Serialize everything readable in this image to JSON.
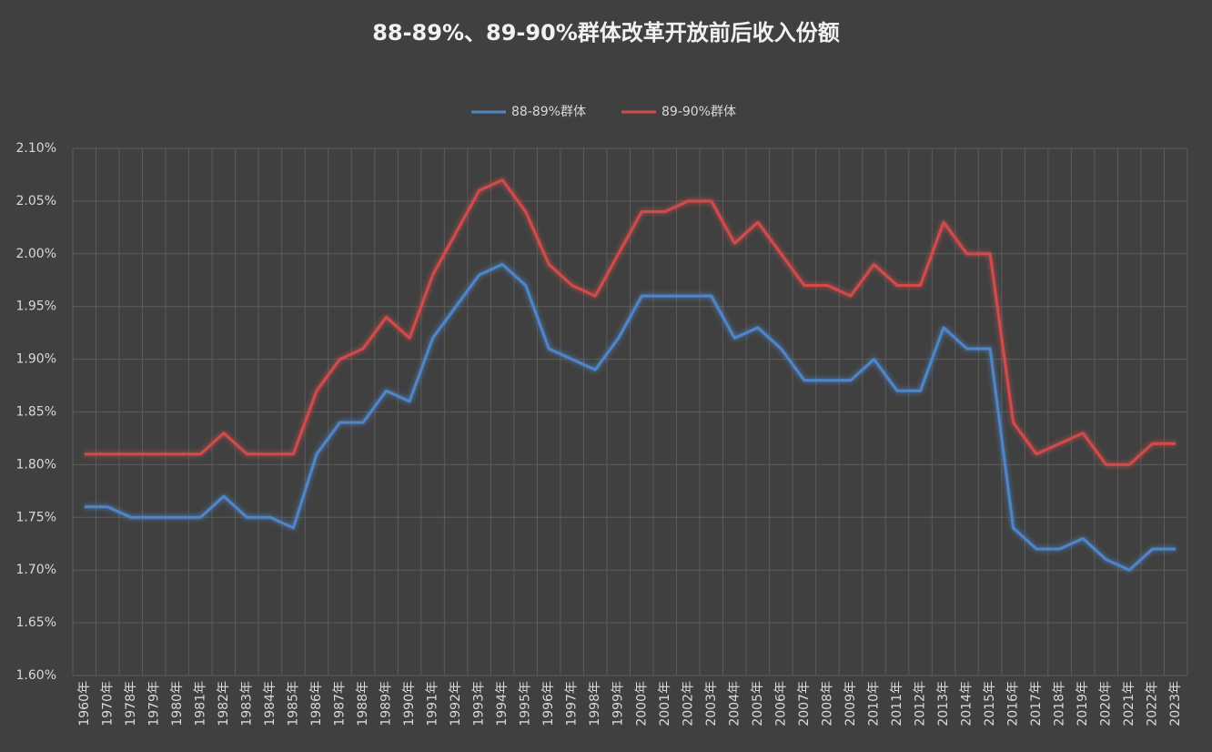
{
  "chart_data": {
    "type": "line",
    "title": "88-89%、89-90%群体改革开放前后收入份额",
    "categories": [
      "1960年",
      "1970年",
      "1978年",
      "1979年",
      "1980年",
      "1981年",
      "1982年",
      "1983年",
      "1984年",
      "1985年",
      "1986年",
      "1987年",
      "1988年",
      "1989年",
      "1990年",
      "1991年",
      "1992年",
      "1993年",
      "1994年",
      "1995年",
      "1996年",
      "1997年",
      "1998年",
      "1999年",
      "2000年",
      "2001年",
      "2002年",
      "2003年",
      "2004年",
      "2005年",
      "2006年",
      "2007年",
      "2008年",
      "2009年",
      "2010年",
      "2011年",
      "2012年",
      "2013年",
      "2014年",
      "2015年",
      "2016年",
      "2017年",
      "2018年",
      "2019年",
      "2020年",
      "2021年",
      "2022年",
      "2023年"
    ],
    "series": [
      {
        "name": "88-89%群体",
        "color": "#4f86c9",
        "values": [
          1.76,
          1.76,
          1.75,
          1.75,
          1.75,
          1.75,
          1.77,
          1.75,
          1.75,
          1.74,
          1.81,
          1.84,
          1.84,
          1.87,
          1.86,
          1.92,
          1.95,
          1.98,
          1.99,
          1.97,
          1.91,
          1.9,
          1.89,
          1.92,
          1.96,
          1.96,
          1.96,
          1.96,
          1.92,
          1.93,
          1.91,
          1.88,
          1.88,
          1.88,
          1.9,
          1.87,
          1.87,
          1.93,
          1.91,
          1.91,
          1.74,
          1.72,
          1.72,
          1.73,
          1.71,
          1.7,
          1.72,
          1.72
        ]
      },
      {
        "name": "89-90%群体",
        "color": "#d24c4c",
        "values": [
          1.81,
          1.81,
          1.81,
          1.81,
          1.81,
          1.81,
          1.83,
          1.81,
          1.81,
          1.81,
          1.87,
          1.9,
          1.91,
          1.94,
          1.92,
          1.98,
          2.02,
          2.06,
          2.07,
          2.04,
          1.99,
          1.97,
          1.96,
          2.0,
          2.04,
          2.04,
          2.05,
          2.05,
          2.01,
          2.03,
          2.0,
          1.97,
          1.97,
          1.96,
          1.99,
          1.97,
          1.97,
          2.03,
          2.0,
          2.0,
          1.84,
          1.81,
          1.82,
          1.83,
          1.8,
          1.8,
          1.82,
          1.82
        ]
      }
    ],
    "ylim": [
      1.6,
      2.1
    ],
    "yticks": [
      {
        "value": 1.6,
        "label": "1.60%"
      },
      {
        "value": 1.65,
        "label": "1.65%"
      },
      {
        "value": 1.7,
        "label": "1.70%"
      },
      {
        "value": 1.75,
        "label": "1.75%"
      },
      {
        "value": 1.8,
        "label": "1.80%"
      },
      {
        "value": 1.85,
        "label": "1.85%"
      },
      {
        "value": 1.9,
        "label": "1.90%"
      },
      {
        "value": 1.95,
        "label": "1.95%"
      },
      {
        "value": 2.0,
        "label": "2.00%"
      },
      {
        "value": 2.05,
        "label": "2.05%"
      },
      {
        "value": 2.1,
        "label": "2.10%"
      }
    ],
    "grid": true,
    "legend": "top"
  }
}
